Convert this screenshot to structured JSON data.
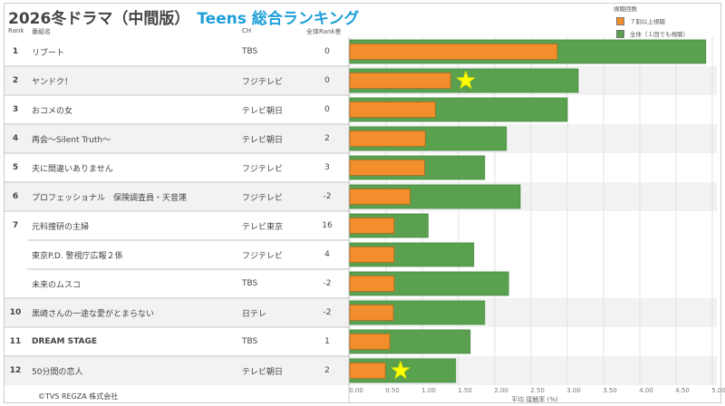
{
  "title": {
    "main": "2026冬ドラマ（中間版）",
    "accent": "Teens 総合ランキング"
  },
  "columns": {
    "rank": "Rank",
    "name": "番組名",
    "ch": "CH",
    "diff": "全体Rank差"
  },
  "legend": {
    "title": "視聴回数",
    "items": [
      {
        "label": "７割以上視聴",
        "color": "#f28e2b"
      },
      {
        "label": "全体（１回でも視聴）",
        "color": "#59a14f"
      }
    ]
  },
  "copyright": "©TVS REGZA 株式会社",
  "rows": [
    {
      "rank": "1",
      "name": "リブート",
      "ch": "TBS",
      "diff": "0"
    },
    {
      "rank": "2",
      "name": "ヤンドク！",
      "ch": "フジテレビ",
      "diff": "0"
    },
    {
      "rank": "3",
      "name": "おコメの女",
      "ch": "テレビ朝日",
      "diff": "0"
    },
    {
      "rank": "4",
      "name": "再会～Silent Truth～",
      "ch": "テレビ朝日",
      "diff": "2"
    },
    {
      "rank": "5",
      "name": "夫に間違いありません",
      "ch": "フジテレビ",
      "diff": "3"
    },
    {
      "rank": "6",
      "name": "プロフェッショナル　保険調査員・天音蓮",
      "ch": "フジテレビ",
      "diff": "-2"
    },
    {
      "rank": "7",
      "name": "元科捜研の主婦",
      "ch": "テレビ東京",
      "diff": "16"
    },
    {
      "rank": "",
      "name": "東京P.D. 警視庁広報２係",
      "ch": "フジテレビ",
      "diff": "4"
    },
    {
      "rank": "",
      "name": "未来のムスコ",
      "ch": "TBS",
      "diff": "-2"
    },
    {
      "rank": "10",
      "name": "黒崎さんの一途な愛がとまらない",
      "ch": "日テレ",
      "diff": "-2"
    },
    {
      "rank": "11",
      "name": "DREAM STAGE",
      "ch": "TBS",
      "diff": "1"
    },
    {
      "rank": "12",
      "name": "50分間の恋人",
      "ch": "テレビ朝日",
      "diff": "2"
    }
  ],
  "chart_data": {
    "type": "bar",
    "orientation": "horizontal",
    "categories": [
      "リブート",
      "ヤンドク！",
      "おコメの女",
      "再会～Silent Truth～",
      "夫に間違いありません",
      "プロフェッショナル　保険調査員・天音蓮",
      "元科捜研の主婦",
      "東京P.D. 警視庁広報２係",
      "未来のムスコ",
      "黒崎さんの一途な愛がとまらない",
      "DREAM STAGE",
      "50分間の恋人"
    ],
    "series": [
      {
        "name": "全体（１回でも視聴）",
        "color": "#59a14f",
        "values": [
          4.91,
          3.15,
          3.0,
          2.16,
          1.86,
          2.35,
          1.08,
          1.71,
          2.19,
          1.86,
          1.66,
          1.46
        ]
      },
      {
        "name": "７割以上視聴",
        "color": "#f28e2b",
        "values": [
          2.86,
          1.39,
          1.18,
          1.04,
          1.03,
          0.83,
          0.61,
          0.61,
          0.61,
          0.6,
          0.55,
          0.49
        ]
      }
    ],
    "star_markers": [
      {
        "category": "ヤンドク！",
        "x": 1.6
      },
      {
        "category": "50分間の恋人",
        "x": 0.7
      }
    ],
    "xlabel": "平均 接触率 (%)",
    "xlim": [
      0,
      5.2
    ],
    "xticks": [
      "0.00",
      "0.50",
      "1.00",
      "1.50",
      "2.00",
      "2.50",
      "3.00",
      "3.50",
      "4.00",
      "4.50",
      "5.00"
    ],
    "grid": true
  }
}
